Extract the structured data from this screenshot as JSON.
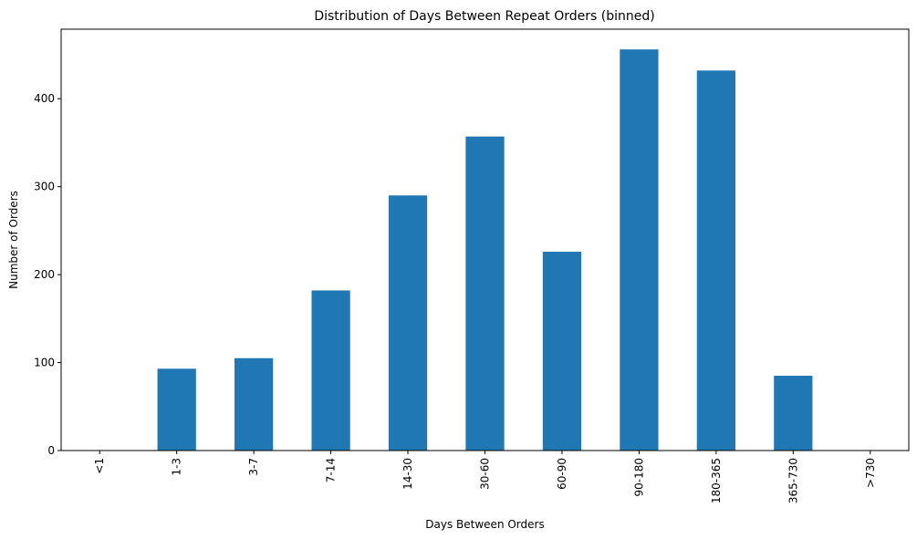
{
  "chart_data": {
    "type": "bar",
    "title": "Distribution of Days Between Repeat Orders (binned)",
    "xlabel": "Days Between Orders",
    "ylabel": "Number of Orders",
    "categories": [
      "<1",
      "1-3",
      "3-7",
      "7-14",
      "14-30",
      "30-60",
      "60-90",
      "90-180",
      "180-365",
      "365-730",
      ">730"
    ],
    "values": [
      0,
      93,
      105,
      182,
      290,
      357,
      226,
      456,
      432,
      85,
      0
    ],
    "ylim": [
      0,
      479
    ],
    "yticks": [
      0,
      100,
      200,
      300,
      400
    ],
    "grid": false,
    "legend": "none",
    "bar_color": "#1f77b4"
  }
}
